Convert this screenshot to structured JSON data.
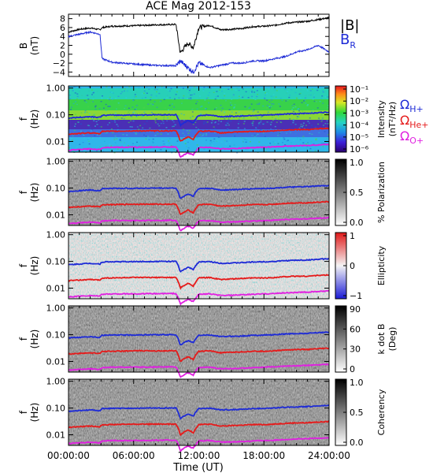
{
  "title": "ACE Mag 2012-153",
  "x_axis": {
    "label": "Time (UT)",
    "ticks": [
      "00:00:00",
      "06:00:00",
      "12:00:00",
      "18:00:00",
      "24:00:00"
    ]
  },
  "legends": {
    "b_total": "|B|",
    "b_radial": "B",
    "b_radial_sub": "R",
    "omega_symbol": "Ω",
    "h_plus": "H+",
    "he_plus": "He+",
    "o_plus": "O+"
  },
  "panels": [
    {
      "ylabel_top": "B",
      "ylabel_bottom": "(nT)",
      "yticks": [
        "8",
        "6",
        "4",
        "2",
        "0",
        "−2",
        "−4"
      ]
    },
    {
      "ylabel_top": "f",
      "ylabel_bottom": "(Hz)",
      "yticks": [
        "1.00",
        "0.10",
        "0.01"
      ],
      "cb_title": [
        "Intensity",
        "(nT²/Hz)"
      ],
      "cb_ticks": [
        "10⁻¹",
        "10⁻²",
        "10⁻³",
        "10⁻⁴",
        "10⁻⁵",
        "10⁻⁶"
      ]
    },
    {
      "ylabel_top": "f",
      "ylabel_bottom": "(Hz)",
      "yticks": [
        "1.00",
        "0.10",
        "0.01"
      ],
      "cb_title": [
        "% Polarization"
      ],
      "cb_ticks": [
        "1.0",
        "0.5",
        "0.0"
      ]
    },
    {
      "ylabel_top": "f",
      "ylabel_bottom": "(Hz)",
      "yticks": [
        "1.00",
        "0.10",
        "0.01"
      ],
      "cb_title": [
        "Ellipticity"
      ],
      "cb_ticks": [
        "1",
        "0",
        "−1"
      ]
    },
    {
      "ylabel_top": "f",
      "ylabel_bottom": "(Hz)",
      "yticks": [
        "1.00",
        "0.10",
        "0.01"
      ],
      "cb_title": [
        "k dot B",
        "(Deg)"
      ],
      "cb_ticks": [
        "90",
        "60",
        "30",
        "0"
      ]
    },
    {
      "ylabel_top": "f",
      "ylabel_bottom": "(Hz)",
      "yticks": [
        "1.00",
        "0.10",
        "0.01"
      ],
      "cb_title": [
        "Coherency"
      ],
      "cb_ticks": [
        "1.0",
        "0.5",
        "0.0"
      ]
    }
  ],
  "colors": {
    "b_total": "#000000",
    "b_radial": "#1e2bd6",
    "omega_h": "#1e2bd6",
    "omega_he": "#e51b1b",
    "omega_o": "#e020e0"
  },
  "chart_data": [
    {
      "type": "line",
      "title": "ACE Mag 2012-153",
      "ylabel": "B (nT)",
      "xlabel": "Time (UT)",
      "xlim_hours": [
        0,
        24
      ],
      "ylim": [
        -5,
        9
      ],
      "series": [
        {
          "name": "|B|",
          "x_hours": [
            0,
            1,
            2,
            2.9,
            3.1,
            4,
            6,
            8,
            9.9,
            10.3,
            11,
            11.5,
            12,
            13,
            14,
            15,
            16,
            17,
            18,
            19,
            20,
            21,
            22,
            23,
            24
          ],
          "values": [
            5.0,
            5.6,
            5.9,
            5.5,
            6.0,
            6.3,
            6.4,
            6.6,
            6.7,
            0.3,
            2.5,
            1.5,
            6.0,
            6.5,
            5.5,
            5.6,
            5.8,
            6.2,
            6.3,
            6.5,
            7.0,
            7.2,
            7.4,
            7.8,
            8.2
          ]
        },
        {
          "name": "BR",
          "x_hours": [
            0,
            1,
            2,
            2.9,
            3.1,
            4,
            6,
            8,
            9.9,
            10.3,
            11,
            11.5,
            12,
            13,
            14,
            15,
            16,
            17,
            18,
            19,
            20,
            21,
            22,
            23,
            24
          ],
          "values": [
            4.0,
            4.5,
            5.0,
            4.5,
            -1.0,
            -1.8,
            -2.2,
            -2.5,
            -2.6,
            -1.5,
            -3.0,
            -4.0,
            -2.0,
            -3.0,
            -2.5,
            -2.0,
            -2.0,
            -1.5,
            -1.5,
            -1.0,
            -0.5,
            0.5,
            1.0,
            2.0,
            0.5
          ]
        }
      ]
    },
    {
      "type": "heatmap",
      "ylabel": "f (Hz)",
      "zlabel": "Intensity (nT²/Hz)",
      "y_scale": "log",
      "ylim": [
        0.004,
        1.2
      ],
      "zlim": [
        1e-06,
        0.1
      ]
    },
    {
      "type": "heatmap",
      "ylabel": "f (Hz)",
      "zlabel": "% Polarization",
      "y_scale": "log",
      "ylim": [
        0.004,
        1.2
      ],
      "zlim": [
        0,
        1
      ]
    },
    {
      "type": "heatmap",
      "ylabel": "f (Hz)",
      "zlabel": "Ellipticity",
      "y_scale": "log",
      "ylim": [
        0.004,
        1.2
      ],
      "zlim": [
        -1,
        1
      ]
    },
    {
      "type": "heatmap",
      "ylabel": "f (Hz)",
      "zlabel": "k dot B (Deg)",
      "y_scale": "log",
      "ylim": [
        0.004,
        1.2
      ],
      "zlim": [
        0,
        90
      ]
    },
    {
      "type": "heatmap",
      "ylabel": "f (Hz)",
      "zlabel": "Coherency",
      "y_scale": "log",
      "ylim": [
        0.004,
        1.2
      ],
      "zlim": [
        0,
        1
      ]
    },
    {
      "type": "line",
      "name": "gyrofrequency overlays (all spectral panels)",
      "x_hours": [
        0,
        1,
        2,
        2.9,
        3.1,
        4,
        6,
        8,
        9.9,
        10.3,
        11,
        11.5,
        12,
        13,
        14,
        15,
        16,
        17,
        18,
        19,
        20,
        21,
        22,
        23,
        24
      ],
      "series": [
        {
          "name": "ΩH+",
          "values": [
            0.075,
            0.08,
            0.085,
            0.08,
            0.095,
            0.097,
            0.098,
            0.1,
            0.1,
            0.04,
            0.06,
            0.05,
            0.095,
            0.098,
            0.085,
            0.087,
            0.09,
            0.095,
            0.097,
            0.1,
            0.107,
            0.11,
            0.113,
            0.12,
            0.125
          ]
        },
        {
          "name": "ΩHe+",
          "values": [
            0.019,
            0.02,
            0.021,
            0.02,
            0.024,
            0.024,
            0.025,
            0.025,
            0.025,
            0.01,
            0.015,
            0.012,
            0.024,
            0.025,
            0.021,
            0.022,
            0.023,
            0.024,
            0.024,
            0.025,
            0.027,
            0.028,
            0.028,
            0.03,
            0.031
          ]
        },
        {
          "name": "ΩO+",
          "values": [
            0.0047,
            0.005,
            0.0053,
            0.005,
            0.0059,
            0.0061,
            0.0061,
            0.0062,
            0.0063,
            0.0025,
            0.0038,
            0.0031,
            0.0059,
            0.0061,
            0.0053,
            0.0054,
            0.0056,
            0.0059,
            0.0061,
            0.0063,
            0.0067,
            0.0069,
            0.0071,
            0.0075,
            0.0078
          ]
        }
      ]
    }
  ]
}
